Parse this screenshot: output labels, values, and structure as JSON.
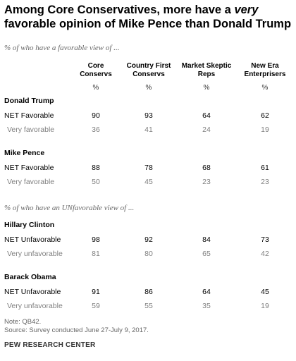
{
  "title_part1": "Among Core Conservatives, more have a ",
  "title_emph": "very",
  "title_part2": " favorable opinion of Mike Pence than Donald Trump",
  "chart_data": {
    "type": "table",
    "columns": [
      "Core Conservs",
      "Country First Conservs",
      "Market Skeptic Reps",
      "New Era Enterprisers"
    ],
    "column_lines": [
      [
        "Core",
        "Conservs"
      ],
      [
        "Country First",
        "Conservs"
      ],
      [
        "Market Skeptic",
        "Reps"
      ],
      [
        "New Era",
        "Enterprisers"
      ]
    ],
    "unit": "%",
    "groups": [
      {
        "subtitle": "% of who have a favorable view of ...",
        "people": [
          {
            "name": "Donald Trump",
            "rows": [
              {
                "label": "NET Favorable",
                "values": [
                  90,
                  93,
                  64,
                  62
                ]
              },
              {
                "label": "Very favorable",
                "values": [
                  36,
                  41,
                  24,
                  19
                ]
              }
            ]
          },
          {
            "name": "Mike Pence",
            "rows": [
              {
                "label": "NET Favorable",
                "values": [
                  88,
                  78,
                  68,
                  61
                ]
              },
              {
                "label": "Very favorable",
                "values": [
                  50,
                  45,
                  23,
                  23
                ]
              }
            ]
          }
        ]
      },
      {
        "subtitle": "% of who have an UNfavorable view of ...",
        "people": [
          {
            "name": "Hillary Clinton",
            "rows": [
              {
                "label": "NET Unfavorable",
                "values": [
                  98,
                  92,
                  84,
                  73
                ]
              },
              {
                "label": "Very unfavorable",
                "values": [
                  81,
                  80,
                  65,
                  42
                ]
              }
            ]
          },
          {
            "name": "Barack Obama",
            "rows": [
              {
                "label": "NET Unfavorable",
                "values": [
                  91,
                  86,
                  64,
                  45
                ]
              },
              {
                "label": "Very unfavorable",
                "values": [
                  59,
                  55,
                  35,
                  19
                ]
              }
            ]
          }
        ]
      }
    ]
  },
  "note": "Note: QB42.",
  "source": "Source: Survey conducted June 27-July 9, 2017.",
  "org": "PEW RESEARCH CENTER"
}
